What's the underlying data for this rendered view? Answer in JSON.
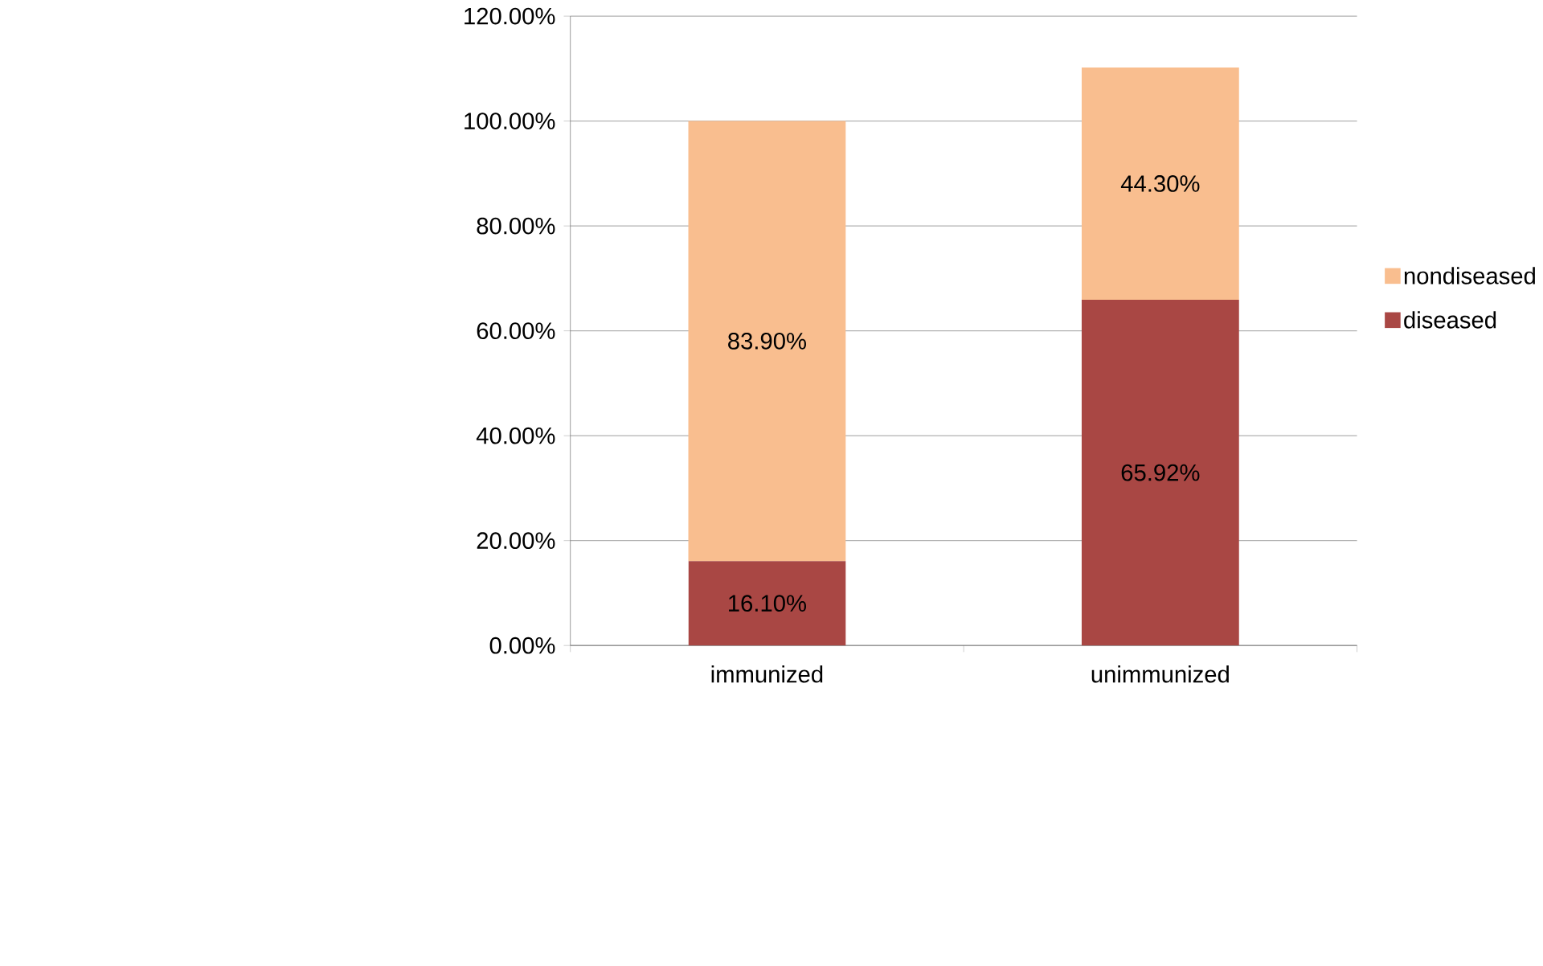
{
  "chart_data": {
    "type": "bar",
    "stacked": true,
    "categories": [
      "immunized",
      "unimmunized"
    ],
    "series": [
      {
        "name": "diseased",
        "color": "#a94744",
        "values": [
          16.1,
          65.92
        ],
        "value_labels": [
          "16.10%",
          "65.92%"
        ]
      },
      {
        "name": "nondiseased",
        "color": "#f9be8f",
        "values": [
          83.9,
          44.3
        ],
        "value_labels": [
          "83.90%",
          "44.30%"
        ]
      }
    ],
    "ylim": [
      0,
      120
    ],
    "yticks": [
      {
        "value": 0,
        "label": "0.00%"
      },
      {
        "value": 20,
        "label": "20.00%"
      },
      {
        "value": 40,
        "label": "40.00%"
      },
      {
        "value": 60,
        "label": "60.00%"
      },
      {
        "value": 80,
        "label": "80.00%"
      },
      {
        "value": 100,
        "label": "100.00%"
      },
      {
        "value": 120,
        "label": "120.00%"
      }
    ],
    "grid": "y",
    "legend": "right"
  }
}
